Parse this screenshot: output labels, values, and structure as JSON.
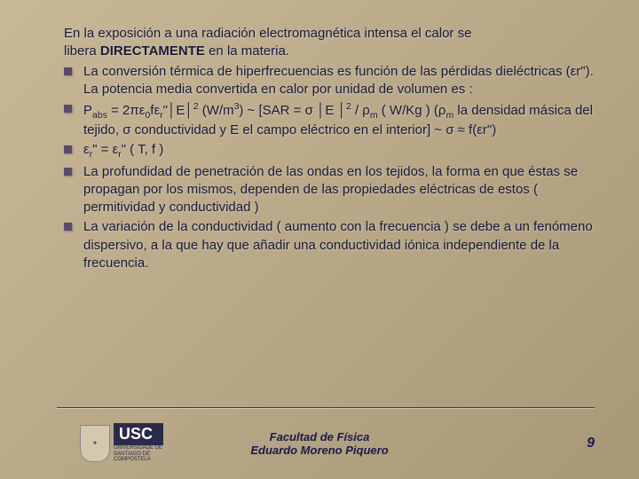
{
  "intro_line1": "En la exposición a una radiación electromagnética intensa el calor se",
  "intro_line2_a": "libera ",
  "intro_line2_b": "DIRECTAMENTE",
  "intro_line2_c": " en la materia.",
  "bullets": {
    "b1": "La conversión térmica de hiperfrecuencias es función de las pérdidas dieléctricas (εr\"). La potencia media convertida en calor por unidad de volumen es :",
    "b2_html": "P<sub>abs</sub> = 2πε<sub>0</sub>fε<sub>r</sub>\"│E│<sup>2</sup>  (W/m<sup>3</sup>)  ~  [SAR = σ │E │<sup>2</sup> / ρ<sub>m</sub>    ( W/Kg ) (ρ<sub>m</sub> la densidad másica del tejido, σ conductividad y E el campo eléctrico en el interior] ~ σ ≈ f(εr\")",
    "b3_html": "ε<sub>r</sub>\" = ε<sub>r</sub>\" ( T, f )",
    "b4": "La profundidad de penetración de las ondas en los tejidos, la forma en que éstas se propagan por los mismos, dependen de las propiedades eléctricas de estos ( permitividad y conductividad )",
    "b5": "La variación de la conductividad ( aumento con la frecuencia ) se debe a un fenómeno dispersivo, a la que hay que añadir una conductividad iónica independiente de la frecuencia."
  },
  "footer": {
    "logo_main": "USC",
    "logo_sub": "UNIVERSIDADE DE SANTIAGO DE COMPOSTELA",
    "center_line1": "Facultad de Física",
    "center_line2": "Eduardo Moreno Piquero",
    "page": "9"
  },
  "colors": {
    "text": "#1a1a3a",
    "bullet_marker": "#5a4a6a",
    "footer_text": "#1a1a4a",
    "bg_start": "#c8b898",
    "bg_end": "#a89878"
  }
}
